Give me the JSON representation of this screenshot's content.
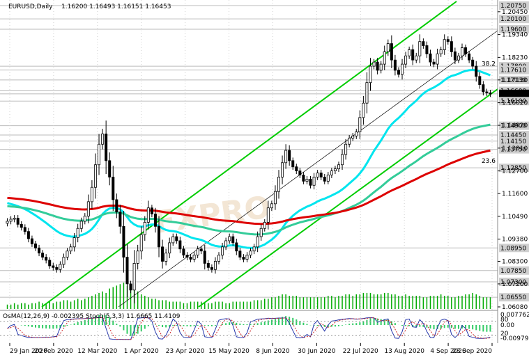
{
  "header": {
    "symbol": "EURUSD,Daily",
    "ohlc": "1.16200 1.16493 1.16151 1.16453"
  },
  "indicator_header": "OsMA(12,26,9) -0.002395 Stoch(5,3,3) 11.6665 11.4109",
  "watermark_text": "FXPRO",
  "colors": {
    "background": "#ffffff",
    "candle": "#000000",
    "channel": "#00cc00",
    "ema_fast": "#00e5ee",
    "ema_mid": "#33cc99",
    "ema_slow": "#dd0000",
    "volume": "#00aa00",
    "level_line": "#bbbbbb",
    "current_price_bg": "#000000"
  },
  "chart_data": {
    "type": "candlestick",
    "symbol": "EURUSD",
    "timeframe": "Daily",
    "x_tick_labels": [
      "29 Jan 2020",
      "20 Feb 2020",
      "12 Mar 2020",
      "1 Apr 2020",
      "23 Apr 2020",
      "15 May 2020",
      "8 Jun 2020",
      "30 Jun 2020",
      "22 Jul 2020",
      "13 Aug 2020",
      "4 Sep 2020",
      "28 Sep 2020"
    ],
    "y_tick_labels": [
      "1.20450",
      "1.19340",
      "1.18230",
      "1.17130",
      "1.16020",
      "1.14920",
      "1.13810",
      "1.12700",
      "1.11600",
      "1.10490",
      "1.09380",
      "1.08300",
      "1.07200",
      "1.06080"
    ],
    "ylim": [
      1.0608,
      1.2075
    ],
    "price_levels": [
      "1.20750",
      "1.20100",
      "1.19600",
      "1.17800",
      "1.17610",
      "1.17130",
      "1.16600",
      "1.16453",
      "1.16100",
      "1.14900",
      "1.14450",
      "1.14150",
      "1.13750",
      "1.12850",
      "1.08950",
      "1.07850",
      "1.07300",
      "1.06550"
    ],
    "current_price": "1.16453",
    "fib_labels": [
      "38.2",
      "23.6"
    ],
    "fib_levels": [
      1.1776,
      1.1302
    ],
    "close": [
      1.1025,
      1.1035,
      1.104,
      1.101,
      1.0995,
      1.0975,
      1.094,
      1.0915,
      1.0895,
      1.087,
      1.085,
      1.0835,
      1.0808,
      1.08,
      1.079,
      1.0815,
      1.085,
      1.088,
      1.09,
      1.0945,
      1.099,
      1.1025,
      1.105,
      1.112,
      1.119,
      1.13,
      1.14,
      1.145,
      1.132,
      1.124,
      1.113,
      1.107,
      1.1,
      1.085,
      1.072,
      1.069,
      1.082,
      1.088,
      1.096,
      1.102,
      1.109,
      1.106,
      1.1,
      1.09,
      1.083,
      1.087,
      1.092,
      1.095,
      1.093,
      1.089,
      1.086,
      1.085,
      1.084,
      1.086,
      1.089,
      1.088,
      1.082,
      1.08,
      1.079,
      1.083,
      1.086,
      1.09,
      1.093,
      1.095,
      1.092,
      1.088,
      1.085,
      1.084,
      1.086,
      1.088,
      1.09,
      1.095,
      1.099,
      1.102,
      1.109,
      1.111,
      1.117,
      1.124,
      1.131,
      1.137,
      1.132,
      1.129,
      1.127,
      1.125,
      1.122,
      1.123,
      1.12,
      1.124,
      1.126,
      1.124,
      1.122,
      1.125,
      1.127,
      1.128,
      1.13,
      1.135,
      1.14,
      1.143,
      1.144,
      1.146,
      1.153,
      1.16,
      1.17,
      1.178,
      1.18,
      1.176,
      1.179,
      1.185,
      1.189,
      1.181,
      1.176,
      1.174,
      1.179,
      1.183,
      1.186,
      1.181,
      1.183,
      1.19,
      1.188,
      1.184,
      1.18,
      1.179,
      1.184,
      1.186,
      1.191,
      1.19,
      1.185,
      1.181,
      1.183,
      1.187,
      1.184,
      1.181,
      1.178,
      1.173,
      1.169,
      1.1655,
      1.165,
      1.1645
    ],
    "volume": [
      3,
      3,
      4,
      3,
      4,
      4,
      3,
      4,
      4,
      5,
      4,
      4,
      5,
      4,
      5,
      5,
      6,
      6,
      5,
      6,
      7,
      6,
      7,
      8,
      9,
      10,
      11,
      12,
      11,
      14,
      15,
      16,
      17,
      18,
      16,
      15,
      14,
      12,
      10,
      9,
      8,
      7,
      7,
      6,
      6,
      6,
      5,
      5,
      5,
      5,
      4,
      4,
      5,
      5,
      5,
      5,
      4,
      4,
      4,
      5,
      5,
      5,
      4,
      4,
      5,
      5,
      5,
      5,
      5,
      5,
      6,
      6,
      6,
      7,
      7,
      8,
      8,
      9,
      10,
      10,
      9,
      9,
      9,
      8,
      8,
      8,
      8,
      8,
      8,
      8,
      8,
      9,
      9,
      8,
      9,
      9,
      10,
      10,
      9,
      10,
      10,
      11,
      11,
      11,
      10,
      10,
      10,
      11,
      11,
      10,
      10,
      9,
      9,
      10,
      9,
      9,
      9,
      9,
      8,
      8,
      9,
      9,
      9,
      10,
      9,
      9,
      8,
      8,
      9,
      9,
      10,
      10,
      11,
      10,
      9,
      8,
      8,
      8
    ]
  }
}
